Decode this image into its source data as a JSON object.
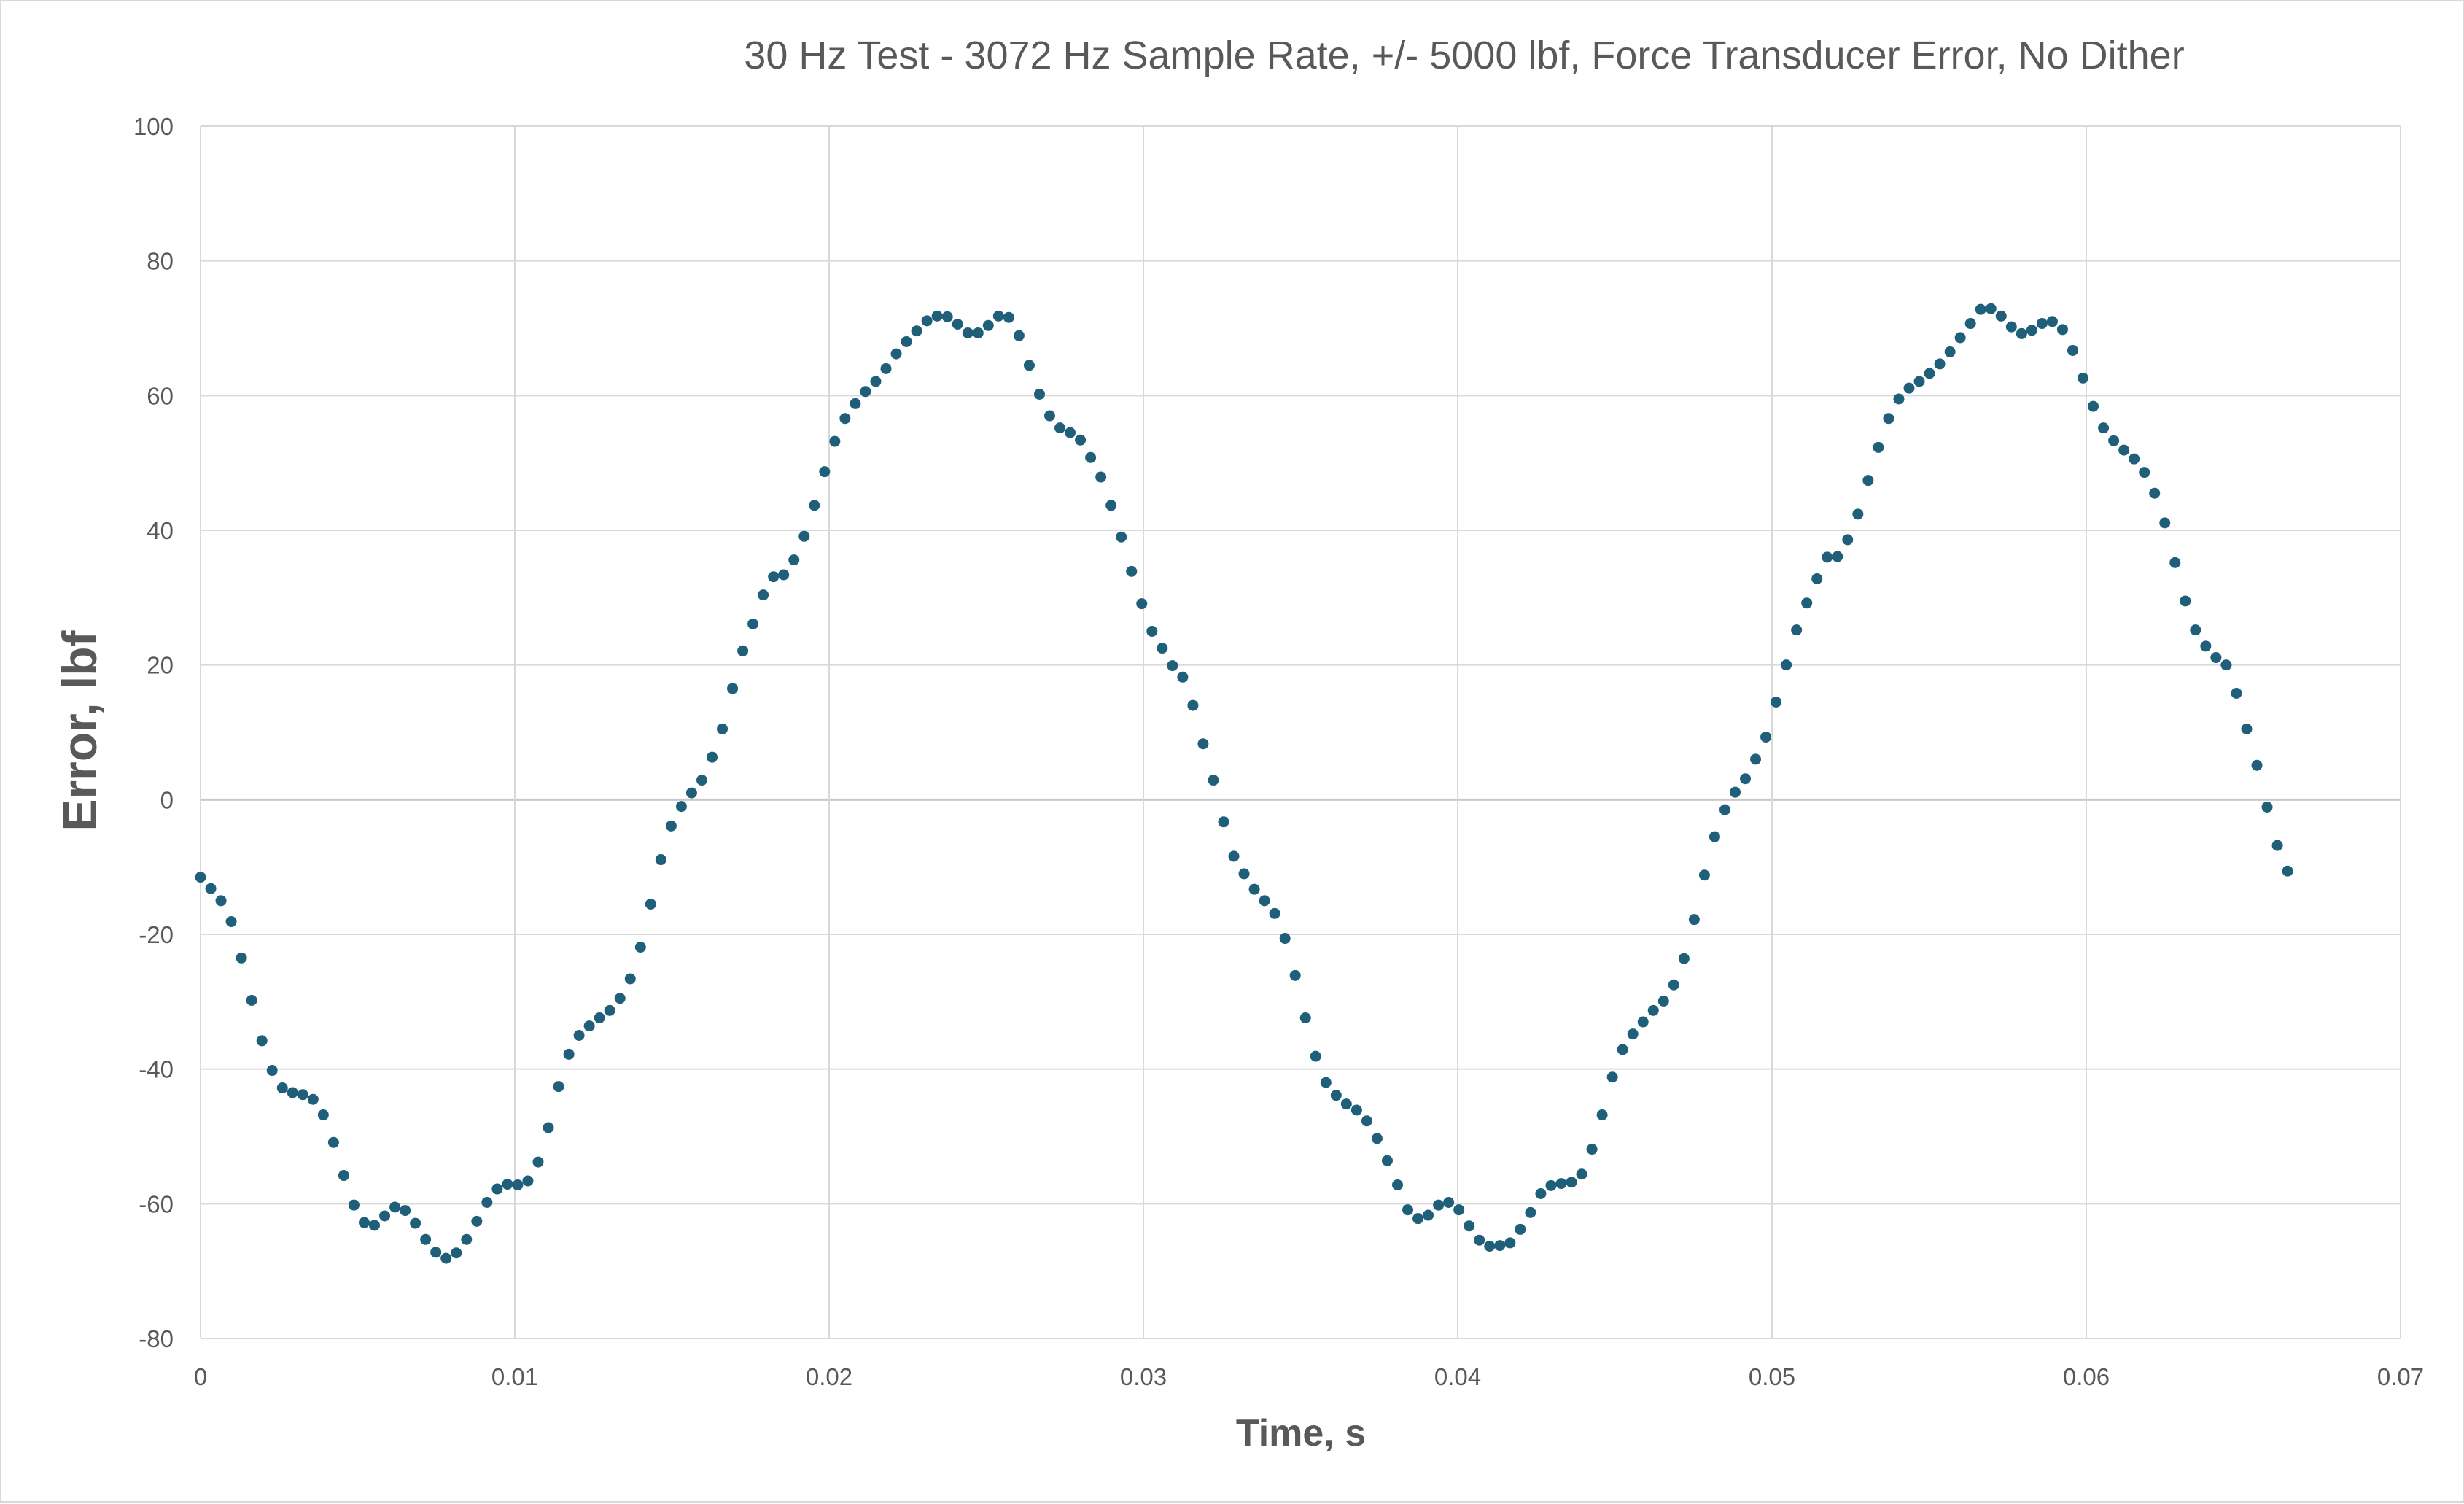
{
  "chart_data": {
    "type": "scatter",
    "title": "30 Hz Test - 3072 Hz Sample Rate, +/- 5000 lbf, Force Transducer Error, No Dither",
    "xlabel": "Time, s",
    "ylabel": "Error, lbf",
    "xlim": [
      0,
      0.07
    ],
    "ylim": [
      -80,
      100
    ],
    "x_ticks": [
      0,
      0.01,
      0.02,
      0.03,
      0.04,
      0.05,
      0.06,
      0.07
    ],
    "x_tick_labels": [
      "0",
      "0.01",
      "0.02",
      "0.03",
      "0.04",
      "0.05",
      "0.06",
      "0.07"
    ],
    "y_ticks": [
      -80,
      -60,
      -40,
      -20,
      0,
      20,
      40,
      60,
      80,
      100
    ],
    "y_tick_labels": [
      "-80",
      "-60",
      "-40",
      "-20",
      "0",
      "20",
      "40",
      "60",
      "80",
      "100"
    ],
    "grid": true,
    "legend": "none",
    "marker_color": "#1f5f7a",
    "sample_rate_hz": 3072,
    "series": [
      {
        "y": [
          -11.5,
          -13.2,
          -15.0,
          -18.1,
          -23.5,
          -29.8,
          -35.8,
          -40.2,
          -42.8,
          -43.5,
          -43.8,
          -44.5,
          -46.8,
          -50.9,
          -55.8,
          -60.2,
          -62.8,
          -63.2,
          -61.8,
          -60.5,
          -61.0,
          -62.9,
          -65.3,
          -67.2,
          -68.1,
          -67.3,
          -65.3,
          -62.6,
          -59.8,
          -57.8,
          -57.1,
          -57.2,
          -56.6,
          -53.8,
          -48.7,
          -42.6,
          -37.8,
          -35.0,
          -33.6,
          -32.4,
          -31.3,
          -29.5,
          -26.6,
          -21.9,
          -15.5,
          -8.9,
          -3.9,
          -1.0,
          1.0,
          2.9,
          6.3,
          10.5,
          16.5,
          22.1,
          26.1,
          30.4,
          33.1,
          33.4,
          35.6,
          39.1,
          43.7,
          48.7,
          53.2,
          56.6,
          58.8,
          60.6,
          62.1,
          64.0,
          66.2,
          68.0,
          69.6,
          71.1,
          71.8,
          71.7,
          70.6,
          69.3,
          69.3,
          70.4,
          71.8,
          71.6,
          68.9,
          64.5,
          60.2,
          57.0,
          55.2,
          54.5,
          53.4,
          50.8,
          47.9,
          43.7,
          39.0,
          33.9,
          29.1,
          25.0,
          22.5,
          19.9,
          18.2,
          14.0,
          8.3,
          2.9,
          -3.3,
          -8.4,
          -11.0,
          -13.3,
          -15.0,
          -16.9,
          -20.6,
          -26.1,
          -32.4,
          -38.1,
          -42.0,
          -43.9,
          -45.2,
          -46.1,
          -47.7,
          -50.3,
          -53.6,
          -57.2,
          -60.9,
          -62.2,
          -61.7,
          -60.2,
          -59.8,
          -60.9,
          -63.3,
          -65.4,
          -66.3,
          -66.2,
          -65.8,
          -63.8,
          -61.3,
          -58.5,
          -57.3,
          -57.0,
          -56.8,
          -55.6,
          -51.9,
          -46.8,
          -41.2,
          -37.1,
          -34.8,
          -33.0,
          -31.3,
          -29.9,
          -27.5,
          -23.6,
          -17.8,
          -11.2,
          -5.5,
          -1.5,
          1.1,
          3.1,
          6.0,
          9.3,
          14.5,
          20.0,
          25.2,
          29.2,
          32.8,
          36.0,
          36.1,
          38.6,
          42.4,
          47.4,
          52.3,
          56.6,
          59.5,
          61.1,
          62.1,
          63.3,
          64.7,
          66.5,
          68.6,
          70.7,
          72.8,
          72.9,
          71.8,
          70.2,
          69.2,
          69.7,
          70.7,
          71.0,
          69.8,
          66.7,
          62.6,
          58.4,
          55.2,
          53.3,
          51.9,
          50.6,
          48.6,
          45.5,
          41.1,
          35.2,
          29.5,
          25.2,
          22.8,
          21.1,
          20.0,
          15.8,
          10.5,
          5.1,
          -1.1,
          -6.8,
          -10.6
        ]
      }
    ]
  }
}
